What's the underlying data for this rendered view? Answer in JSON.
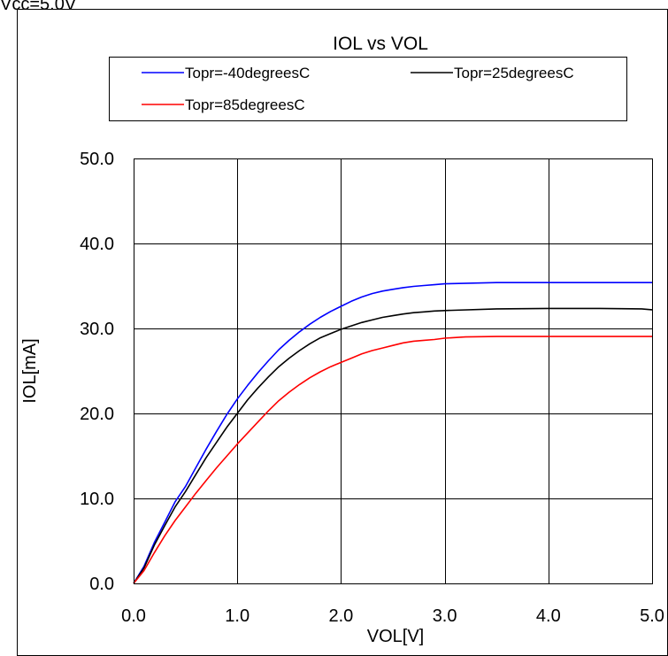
{
  "header_note": "Vcc=5.0V",
  "chart_data": {
    "type": "line",
    "title": "IOL vs VOL",
    "xlabel": "VOL[V]",
    "ylabel": "IOL[mA]",
    "xlim": [
      0,
      5
    ],
    "ylim": [
      0,
      50
    ],
    "xticks": [
      "0.0",
      "1.0",
      "2.0",
      "3.0",
      "4.0",
      "5.0"
    ],
    "yticks": [
      "0.0",
      "10.0",
      "20.0",
      "30.0",
      "40.0",
      "50.0"
    ],
    "grid": true,
    "legend_position": "top",
    "series": [
      {
        "name": "Topr=-40degreesC",
        "color": "#0000ff",
        "points": [
          [
            0,
            0
          ],
          [
            0.1,
            2.0
          ],
          [
            0.2,
            4.8
          ],
          [
            0.3,
            7.2
          ],
          [
            0.4,
            9.6
          ],
          [
            0.5,
            11.4
          ],
          [
            0.6,
            13.6
          ],
          [
            0.7,
            15.8
          ],
          [
            0.8,
            17.9
          ],
          [
            0.9,
            19.9
          ],
          [
            1.0,
            21.7
          ],
          [
            1.1,
            23.3
          ],
          [
            1.2,
            24.8
          ],
          [
            1.3,
            26.2
          ],
          [
            1.4,
            27.5
          ],
          [
            1.5,
            28.6
          ],
          [
            1.6,
            29.6
          ],
          [
            1.7,
            30.5
          ],
          [
            1.8,
            31.3
          ],
          [
            1.9,
            32.0
          ],
          [
            2.0,
            32.6
          ],
          [
            2.1,
            33.2
          ],
          [
            2.2,
            33.7
          ],
          [
            2.3,
            34.1
          ],
          [
            2.4,
            34.4
          ],
          [
            2.5,
            34.6
          ],
          [
            2.6,
            34.8
          ],
          [
            2.7,
            34.95
          ],
          [
            2.8,
            35.05
          ],
          [
            2.9,
            35.15
          ],
          [
            3.0,
            35.25
          ],
          [
            3.5,
            35.4
          ],
          [
            4.0,
            35.4
          ],
          [
            4.5,
            35.4
          ],
          [
            5.0,
            35.4
          ]
        ]
      },
      {
        "name": "Topr=25degreesC",
        "color": "#000000",
        "points": [
          [
            0,
            0
          ],
          [
            0.1,
            1.8
          ],
          [
            0.2,
            4.5
          ],
          [
            0.3,
            6.8
          ],
          [
            0.4,
            9.0
          ],
          [
            0.5,
            10.8
          ],
          [
            0.6,
            12.8
          ],
          [
            0.7,
            14.8
          ],
          [
            0.8,
            16.6
          ],
          [
            0.9,
            18.4
          ],
          [
            1.0,
            20.0
          ],
          [
            1.1,
            21.6
          ],
          [
            1.2,
            23.0
          ],
          [
            1.3,
            24.3
          ],
          [
            1.4,
            25.5
          ],
          [
            1.5,
            26.5
          ],
          [
            1.6,
            27.4
          ],
          [
            1.7,
            28.2
          ],
          [
            1.8,
            28.9
          ],
          [
            1.9,
            29.4
          ],
          [
            2.0,
            29.9
          ],
          [
            2.1,
            30.3
          ],
          [
            2.2,
            30.7
          ],
          [
            2.3,
            31.0
          ],
          [
            2.4,
            31.3
          ],
          [
            2.5,
            31.5
          ],
          [
            2.6,
            31.7
          ],
          [
            2.7,
            31.85
          ],
          [
            2.8,
            31.95
          ],
          [
            2.9,
            32.05
          ],
          [
            3.0,
            32.1
          ],
          [
            3.5,
            32.3
          ],
          [
            4.0,
            32.35
          ],
          [
            4.5,
            32.35
          ],
          [
            4.9,
            32.3
          ],
          [
            5.0,
            32.2
          ]
        ]
      },
      {
        "name": "Topr=85degreesC",
        "color": "#ff0000",
        "points": [
          [
            0,
            0
          ],
          [
            0.1,
            1.5
          ],
          [
            0.2,
            3.6
          ],
          [
            0.3,
            5.6
          ],
          [
            0.4,
            7.4
          ],
          [
            0.5,
            9.0
          ],
          [
            0.6,
            10.6
          ],
          [
            0.7,
            12.1
          ],
          [
            0.8,
            13.6
          ],
          [
            0.9,
            15.0
          ],
          [
            1.0,
            16.4
          ],
          [
            1.1,
            17.7
          ],
          [
            1.2,
            19.0
          ],
          [
            1.3,
            20.3
          ],
          [
            1.4,
            21.5
          ],
          [
            1.5,
            22.5
          ],
          [
            1.6,
            23.4
          ],
          [
            1.7,
            24.2
          ],
          [
            1.8,
            24.9
          ],
          [
            1.9,
            25.5
          ],
          [
            2.0,
            26.0
          ],
          [
            2.1,
            26.5
          ],
          [
            2.2,
            27.0
          ],
          [
            2.3,
            27.4
          ],
          [
            2.4,
            27.7
          ],
          [
            2.5,
            28.0
          ],
          [
            2.6,
            28.3
          ],
          [
            2.7,
            28.5
          ],
          [
            2.8,
            28.6
          ],
          [
            2.9,
            28.7
          ],
          [
            3.0,
            28.85
          ],
          [
            3.2,
            29.0
          ],
          [
            3.5,
            29.05
          ],
          [
            4.0,
            29.05
          ],
          [
            4.5,
            29.05
          ],
          [
            5.0,
            29.05
          ]
        ]
      }
    ]
  }
}
